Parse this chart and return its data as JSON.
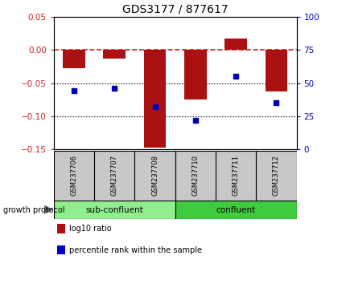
{
  "title": "GDS3177 / 877617",
  "samples": [
    "GSM237706",
    "GSM237707",
    "GSM237708",
    "GSM237710",
    "GSM237711",
    "GSM237712"
  ],
  "log10_ratio": [
    -0.028,
    -0.013,
    -0.148,
    -0.075,
    0.018,
    -0.063
  ],
  "percentile_rank": [
    44,
    46,
    32,
    22,
    55,
    35
  ],
  "ylim_left": [
    -0.15,
    0.05
  ],
  "ylim_right": [
    0,
    100
  ],
  "yticks_left": [
    -0.15,
    -0.1,
    -0.05,
    0.0,
    0.05
  ],
  "yticks_right": [
    0,
    25,
    50,
    75,
    100
  ],
  "hlines_dotted": [
    -0.05,
    -0.1
  ],
  "groups": [
    {
      "label": "sub-confluent",
      "color": "#90EE90",
      "span": [
        0,
        3
      ]
    },
    {
      "label": "confluent",
      "color": "#3ECC3E",
      "span": [
        3,
        6
      ]
    }
  ],
  "bar_color": "#AA1111",
  "dot_color": "#0000BB",
  "zero_line_color": "#CC2222",
  "dotted_line_color": "#000000",
  "bg_plot": "#FFFFFF",
  "bg_label": "#C8C8C8",
  "bar_width": 0.55,
  "legend_items": [
    {
      "color": "#AA1111",
      "label": "log10 ratio"
    },
    {
      "color": "#0000BB",
      "label": "percentile rank within the sample"
    }
  ],
  "left_label_color": "#CC2222",
  "right_label_color": "#0000BB"
}
